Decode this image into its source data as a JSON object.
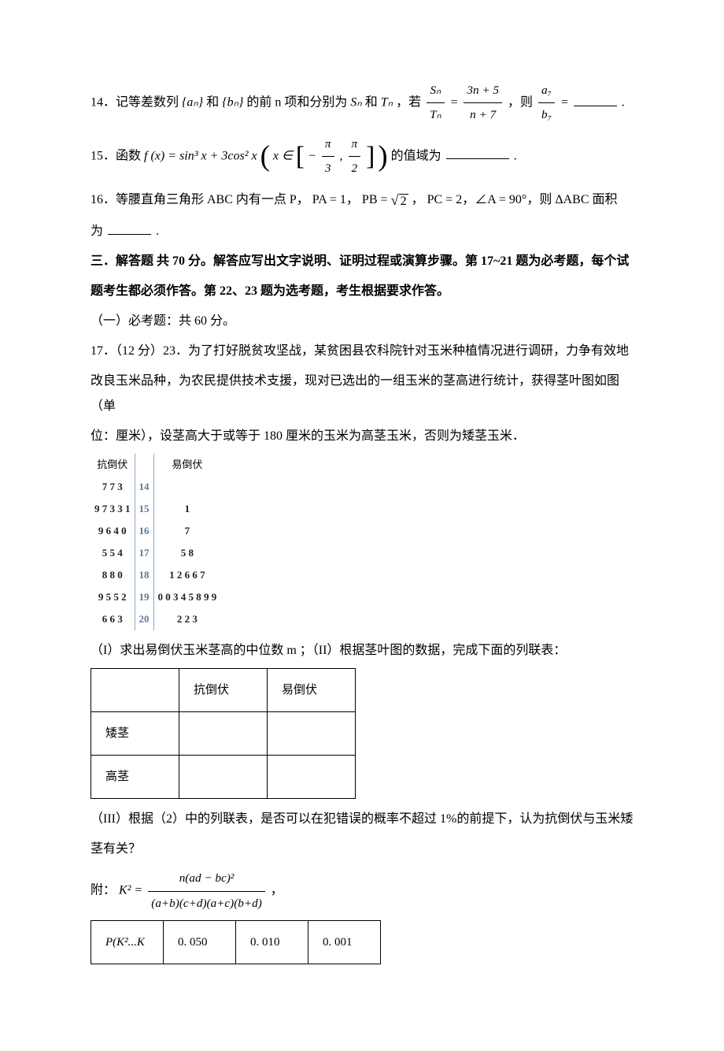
{
  "q14": {
    "prefix": "14．记等差数列",
    "seq1": "{aₙ}",
    "and": "和",
    "seq2": "{bₙ}",
    "mid": "的前 n 项和分别为",
    "S": "Sₙ",
    "T": "Tₙ",
    "cond_prefix": "，若",
    "frac1_num": "Sₙ",
    "frac1_den": "Tₙ",
    "frac2_num": "3n + 5",
    "frac2_den": "n + 7",
    "then": "，则",
    "frac3_num": "a₇",
    "frac3_den": "b₇",
    "eq": " = ",
    "suffix": "."
  },
  "q15": {
    "prefix": "15．函数 ",
    "func": "f (x) = sin³ x + 3cos² x",
    "xin_prefix": "x ∈",
    "lb_num": "π",
    "lb_den": "3",
    "ub_num": "π",
    "ub_den": "2",
    "mid": "的值域为",
    "suffix": "."
  },
  "q16": {
    "line1": "16．等腰直角三角形 ABC 内有一点 P， PA = 1， PB = ",
    "sqrt_arg": "2",
    "line1b": "， PC = 2，∠A = 90°，则 ΔABC 面积",
    "line2": "为",
    "suffix": "."
  },
  "section3": {
    "l1": "三．解答题 共 70 分。解答应写出文字说明、证明过程或演算步骤。第 17~21 题为必考题，每个试",
    "l2": "题考生都必须作答。第 22、23 题为选考题，考生根据要求作答。",
    "l3": "（一）必考题：共 60 分。"
  },
  "q17": {
    "p1": "17．（12 分）23．为了打好脱贫攻坚战，某贫困县农科院针对玉米种植情况进行调研，力争有效地",
    "p2": "改良玉米品种，为农民提供技术支援，现对已选出的一组玉米的茎高进行统计，获得茎叶图如图（单",
    "p3": "位：厘米），设茎高大于或等于 180 厘米的玉米为高茎玉米，否则为矮茎玉米．"
  },
  "stemleaf": {
    "header_left": "抗倒伏",
    "header_right": "易倒伏",
    "rows": [
      {
        "left": "7 7 3",
        "stem": "14",
        "right": ""
      },
      {
        "left": "9 7 3 3 1",
        "stem": "15",
        "right": "1"
      },
      {
        "left": "9 6 4 0",
        "stem": "16",
        "right": "7"
      },
      {
        "left": "5 5 4",
        "stem": "17",
        "right": "5 8"
      },
      {
        "left": "8 8 0",
        "stem": "18",
        "right": "1 2 6 6 7"
      },
      {
        "left": "9 5 5 2",
        "stem": "19",
        "right": "0 0 3 4 5 8 9 9"
      },
      {
        "left": "6 6 3",
        "stem": "20",
        "right": "2 2 3"
      }
    ],
    "colors": {
      "stem_border": "#8da9c4",
      "stem_text": "#5a7aa0",
      "digit": "#222222"
    }
  },
  "q17b": {
    "l1": "（I）求出易倒伏玉米茎高的中位数 m ；（II）根据茎叶图的数据，完成下面的列联表："
  },
  "table1": {
    "header": [
      "",
      "抗倒伏",
      "易倒伏"
    ],
    "rows": [
      [
        "矮茎",
        "",
        ""
      ],
      [
        "高茎",
        "",
        ""
      ]
    ]
  },
  "q17c": {
    "l1": "（III）根据（2）中的列联表，是否可以在犯错误的概率不超过 1%的前提下，认为抗倒伏与玉米矮",
    "l2": "茎有关？"
  },
  "formula": {
    "prefix": "附：",
    "lhs": "K² = ",
    "num": "n(ad − bc)²",
    "den": "(a+b)(c+d)(a+c)(b+d)",
    "suffix": "，"
  },
  "table2": {
    "row": [
      "P(K²...K",
      "0. 050",
      "0. 010",
      "0. 001"
    ]
  }
}
